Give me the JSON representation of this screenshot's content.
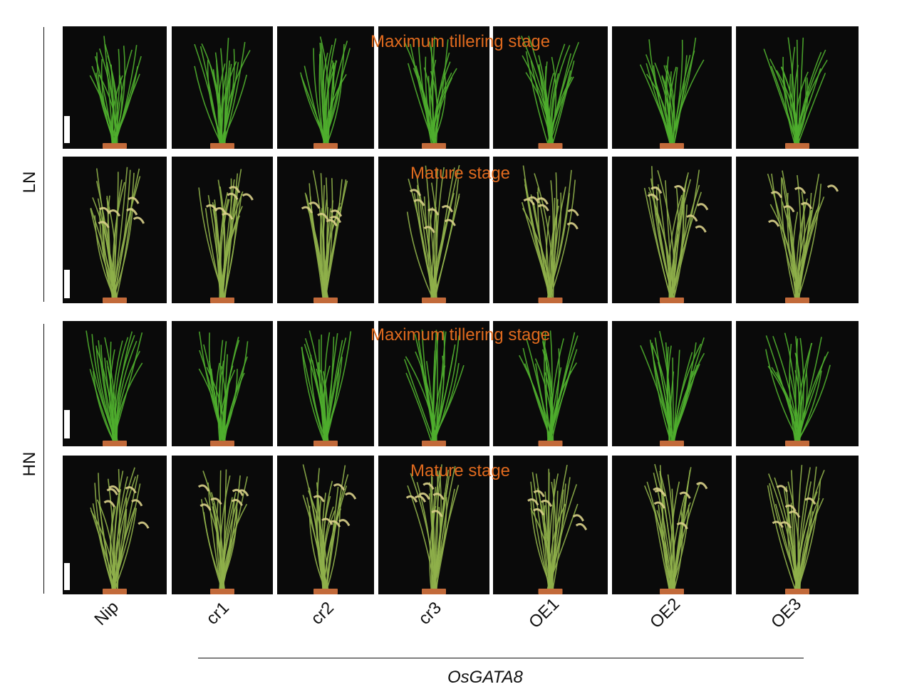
{
  "figure": {
    "groups": [
      {
        "label": "LN",
        "stages": [
          "Maximum tillering stage",
          "Mature stage"
        ]
      },
      {
        "label": "HN",
        "stages": [
          "Maximum tillering stage",
          "Mature stage"
        ]
      }
    ],
    "columns": [
      "Nip",
      "cr1",
      "cr2",
      "cr3",
      "OE1",
      "OE2",
      "OE3"
    ],
    "gene_label": "OsGATA8",
    "colors": {
      "stage_text": "#e06a1e",
      "panel_bg": "#0a0a0a",
      "leaf_tillering": "#4fae2e",
      "leaf_mature": "#8fb04a",
      "panicle": "#d9d08a",
      "pot": "#c26a3a",
      "scale_bar": "#ffffff"
    },
    "panel_stage": [
      "tillering",
      "mature",
      "tillering",
      "mature"
    ]
  }
}
